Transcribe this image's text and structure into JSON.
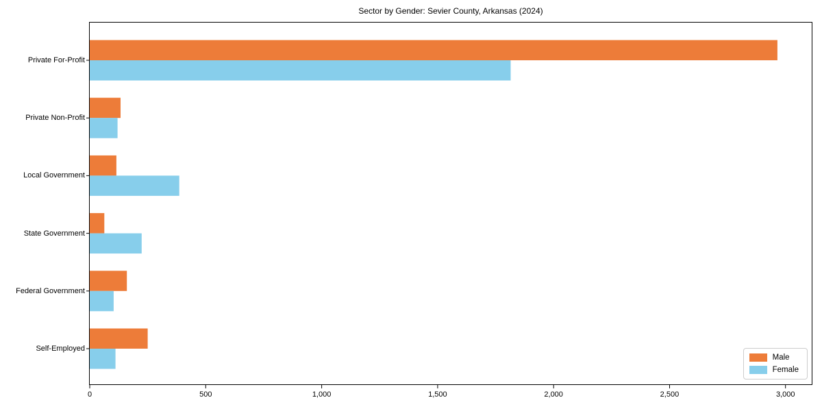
{
  "chart_data": {
    "type": "bar",
    "orientation": "horizontal",
    "title": "Sector by Gender: Sevier County, Arkansas (2024)",
    "categories": [
      "Private For-Profit",
      "Private Non-Profit",
      "Local Government",
      "State Government",
      "Federal Government",
      "Self-Employed"
    ],
    "series": [
      {
        "name": "Male",
        "color": "#ed7c39",
        "values": [
          2965,
          133,
          115,
          63,
          160,
          250
        ]
      },
      {
        "name": "Female",
        "color": "#87ceeb",
        "values": [
          1815,
          120,
          386,
          224,
          103,
          111
        ]
      }
    ],
    "xlabel": "",
    "ylabel": "",
    "xlim": [
      0,
      3113
    ],
    "xticks": [
      0,
      500,
      1000,
      1500,
      2000,
      2500,
      3000
    ],
    "xtick_labels": [
      "0",
      "500",
      "1,000",
      "1,500",
      "2,000",
      "2,500",
      "3,000"
    ],
    "grid": false,
    "legend_position": "lower right",
    "axis_color": "#000000",
    "background_color": "#ffffff"
  }
}
